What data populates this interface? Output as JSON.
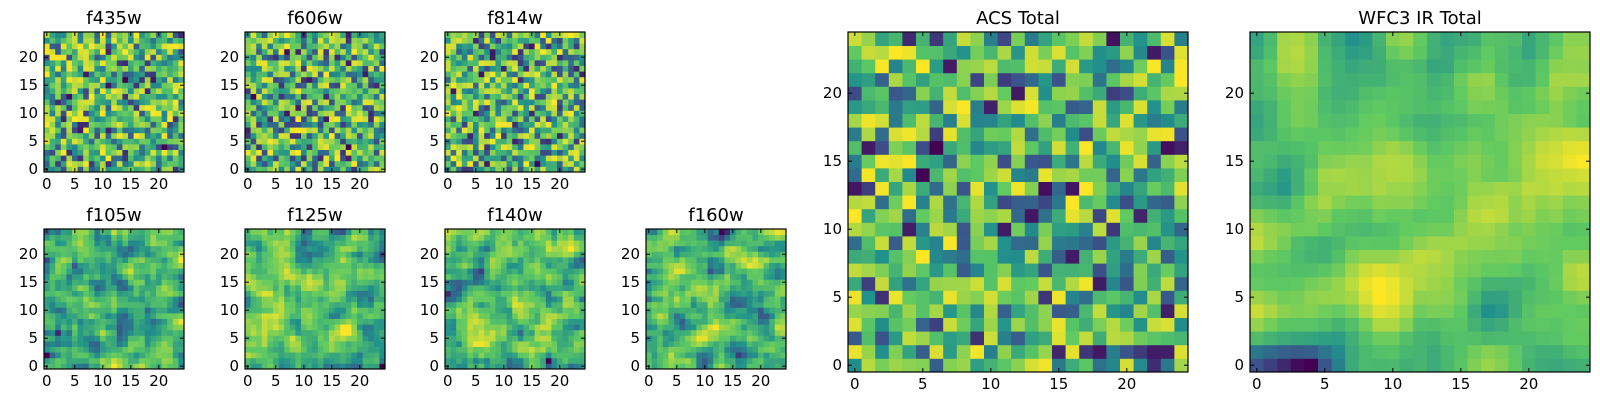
{
  "colormap": [
    "#440154",
    "#3b528b",
    "#21918c",
    "#5ec962",
    "#fde725"
  ],
  "chart_data": [
    {
      "type": "heatmap",
      "title": "f435w",
      "grid_size": 25,
      "seed": 11,
      "smooth": 0,
      "xticks": [
        0,
        5,
        10,
        15,
        20
      ],
      "yticks": [
        0,
        5,
        10,
        15,
        20
      ]
    },
    {
      "type": "heatmap",
      "title": "f606w",
      "grid_size": 25,
      "seed": 23,
      "smooth": 0,
      "xticks": [
        0,
        5,
        10,
        15,
        20
      ],
      "yticks": [
        0,
        5,
        10,
        15,
        20
      ]
    },
    {
      "type": "heatmap",
      "title": "f814w",
      "grid_size": 25,
      "seed": 37,
      "smooth": 0,
      "xticks": [
        0,
        5,
        10,
        15,
        20
      ],
      "yticks": [
        0,
        5,
        10,
        15,
        20
      ]
    },
    {
      "type": "heatmap",
      "title": "f105w",
      "grid_size": 25,
      "seed": 41,
      "smooth": 1,
      "xticks": [
        0,
        5,
        10,
        15,
        20
      ],
      "yticks": [
        0,
        5,
        10,
        15,
        20
      ]
    },
    {
      "type": "heatmap",
      "title": "f125w",
      "grid_size": 25,
      "seed": 53,
      "smooth": 1,
      "xticks": [
        0,
        5,
        10,
        15,
        20
      ],
      "yticks": [
        0,
        5,
        10,
        15,
        20
      ]
    },
    {
      "type": "heatmap",
      "title": "f140w",
      "grid_size": 25,
      "seed": 67,
      "smooth": 1,
      "xticks": [
        0,
        5,
        10,
        15,
        20
      ],
      "yticks": [
        0,
        5,
        10,
        15,
        20
      ]
    },
    {
      "type": "heatmap",
      "title": "f160w",
      "grid_size": 25,
      "seed": 71,
      "smooth": 1,
      "xticks": [
        0,
        5,
        10,
        15,
        20
      ],
      "yticks": [
        0,
        5,
        10,
        15,
        20
      ]
    },
    {
      "type": "heatmap",
      "title": "ACS Total",
      "grid_size": 25,
      "seed": 83,
      "smooth": 0,
      "xticks": [
        0,
        5,
        10,
        15,
        20
      ],
      "yticks": [
        0,
        5,
        10,
        15,
        20
      ]
    },
    {
      "type": "heatmap",
      "title": "WFC3 IR Total",
      "grid_size": 25,
      "seed": 97,
      "smooth": 2,
      "xticks": [
        0,
        5,
        10,
        15,
        20
      ],
      "yticks": [
        0,
        5,
        10,
        15,
        20
      ]
    }
  ]
}
